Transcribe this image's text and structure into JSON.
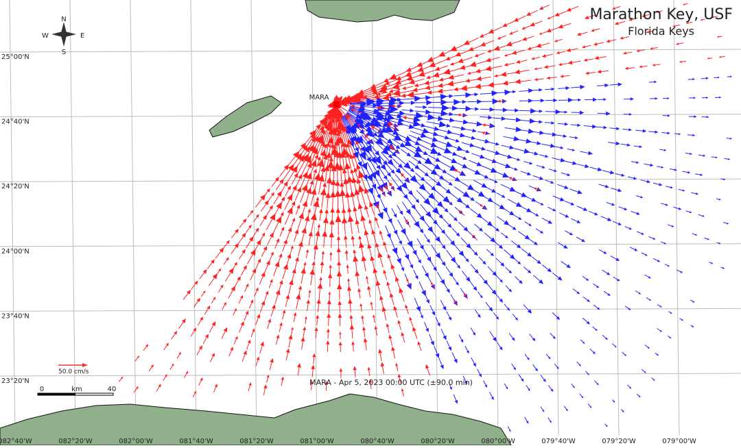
{
  "title": "Marathon Key, USF",
  "subtitle": "Florida Keys",
  "station": "MARA",
  "timestamp": "MARA - Apr 5, 2023 00:00 UTC (±90.0 min)",
  "scale": {
    "vector": "50.0 cm/s",
    "distance_start": 0,
    "distance_unit": "km",
    "distance_end": 40
  },
  "compass": {
    "north": "N",
    "south": "S",
    "east": "E",
    "west": "W"
  },
  "latitude_labels": [
    "25°00'N",
    "24°40'N",
    "24°20'N",
    "24°00'N",
    "23°40'N",
    "23°20'N"
  ],
  "longitude_labels": [
    "082°40'W",
    "082°20'W",
    "082°00'W",
    "081°40'W",
    "081°20'W",
    "081°00'W",
    "080°40'W",
    "080°20'W",
    "080°00'W",
    "079°40'W",
    "079°20'W",
    "079°00'W"
  ]
}
